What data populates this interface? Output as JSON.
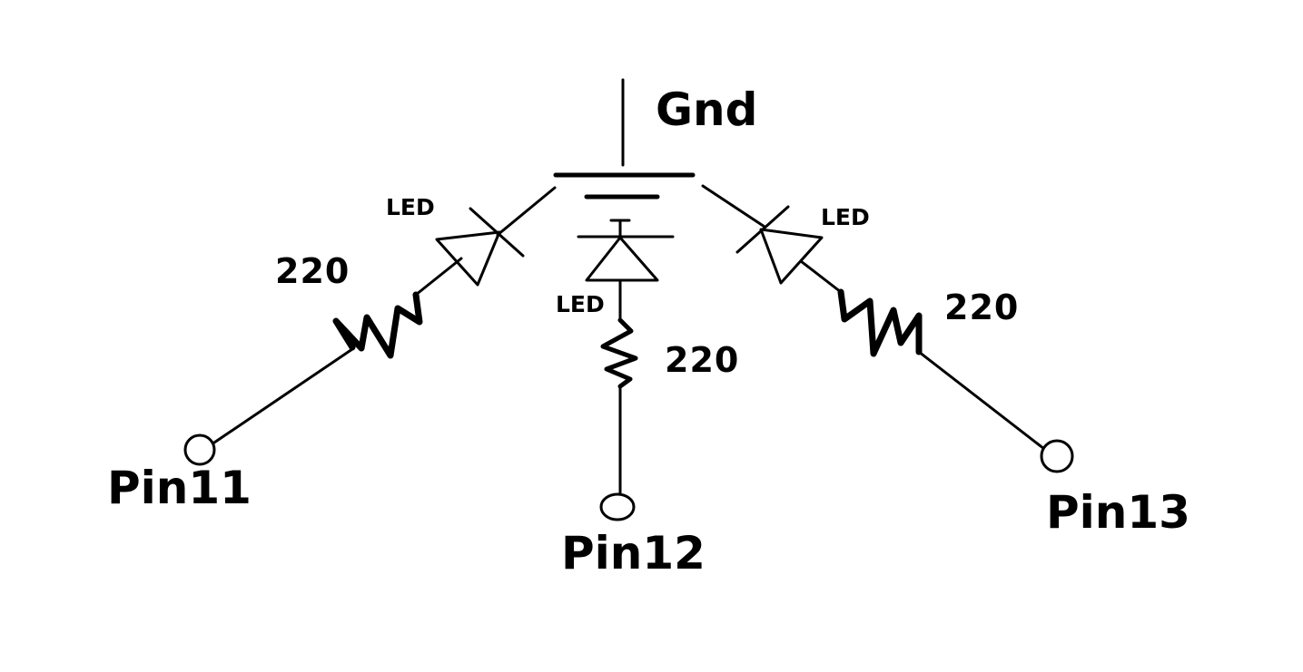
{
  "diagram": {
    "ground_label": "Gnd",
    "branches": [
      {
        "led_label": "LED",
        "resistor_label": "220",
        "pin_label": "Pin11"
      },
      {
        "led_label": "LED",
        "resistor_label": "220",
        "pin_label": "Pin12"
      },
      {
        "led_label": "LED",
        "resistor_label": "220",
        "pin_label": "Pin13"
      }
    ]
  }
}
